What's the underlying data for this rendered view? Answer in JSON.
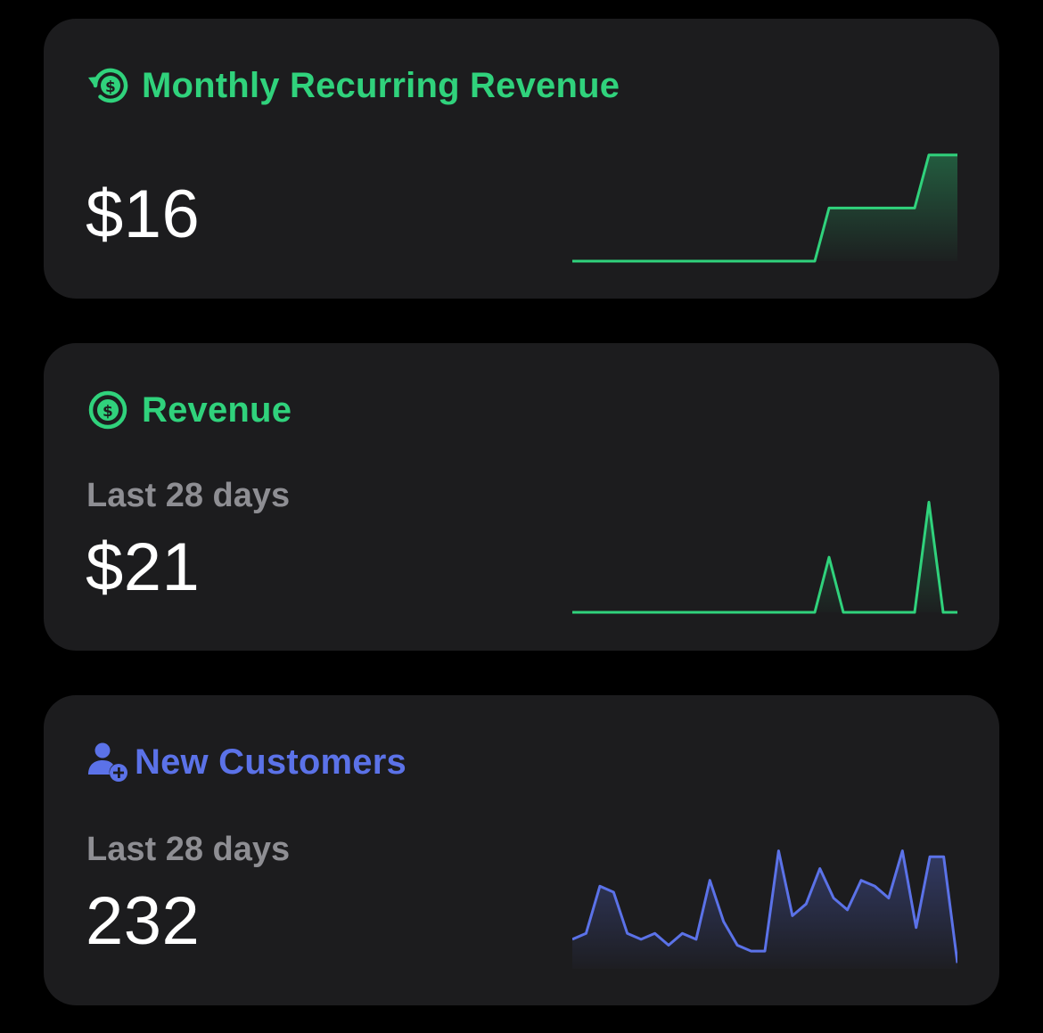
{
  "colors": {
    "green": "#30d27c",
    "blue": "#5b72e8",
    "card": "#1c1c1e",
    "muted": "#8e8e93"
  },
  "cards": [
    {
      "icon": "recurring-dollar-icon",
      "title": "Monthly Recurring Revenue",
      "subtitle": "",
      "value": "$16"
    },
    {
      "icon": "dollar-circle-icon",
      "title": "Revenue",
      "subtitle": "Last 28 days",
      "value": "$21"
    },
    {
      "icon": "person-add-icon",
      "title": "New Customers",
      "subtitle": "Last 28 days",
      "value": "232"
    }
  ],
  "chart_data": [
    {
      "type": "area",
      "series": [
        {
          "values": [
            0,
            0,
            0,
            0,
            0,
            0,
            0,
            0,
            0,
            0,
            0,
            0,
            0,
            0,
            0,
            0,
            0,
            0,
            4,
            4,
            4,
            4,
            4,
            4,
            4,
            8,
            8,
            8
          ]
        }
      ],
      "ylim": [
        0,
        9
      ]
    },
    {
      "type": "area",
      "series": [
        {
          "values": [
            0,
            0,
            0,
            0,
            0,
            0,
            0,
            0,
            0,
            0,
            0,
            0,
            0,
            0,
            0,
            0,
            0,
            0,
            4,
            0,
            0,
            0,
            0,
            0,
            0,
            8,
            0,
            0
          ]
        }
      ],
      "ylim": [
        0,
        9
      ]
    },
    {
      "type": "area",
      "series": [
        {
          "values": [
            3,
            4,
            12,
            11,
            4,
            3,
            4,
            2,
            4,
            3,
            13,
            6,
            2,
            1,
            1,
            18,
            7,
            9,
            15,
            10,
            8,
            13,
            12,
            10,
            18,
            5,
            17,
            17,
            -1
          ]
        }
      ],
      "ylim": [
        -2,
        19
      ]
    }
  ]
}
